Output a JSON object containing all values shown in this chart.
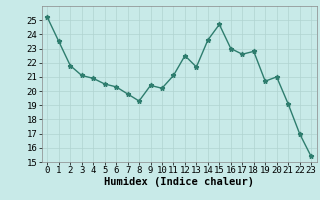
{
  "x": [
    0,
    1,
    2,
    3,
    4,
    5,
    6,
    7,
    8,
    9,
    10,
    11,
    12,
    13,
    14,
    15,
    16,
    17,
    18,
    19,
    20,
    21,
    22,
    23
  ],
  "y": [
    25.2,
    23.5,
    21.8,
    21.1,
    20.9,
    20.5,
    20.3,
    19.8,
    19.3,
    20.4,
    20.2,
    21.1,
    22.5,
    21.7,
    23.6,
    24.7,
    23.0,
    22.6,
    22.8,
    20.7,
    21.0,
    19.1,
    17.0,
    15.4
  ],
  "line_color": "#2e7d6e",
  "marker": "*",
  "bg_color": "#c8eae8",
  "grid_color": "#b0d4d0",
  "xlabel": "Humidex (Indice chaleur)",
  "ylim": [
    15,
    26
  ],
  "xlim": [
    -0.5,
    23.5
  ],
  "yticks": [
    15,
    16,
    17,
    18,
    19,
    20,
    21,
    22,
    23,
    24,
    25
  ],
  "xticks": [
    0,
    1,
    2,
    3,
    4,
    5,
    6,
    7,
    8,
    9,
    10,
    11,
    12,
    13,
    14,
    15,
    16,
    17,
    18,
    19,
    20,
    21,
    22,
    23
  ],
  "xlabel_fontsize": 7.5,
  "tick_fontsize": 6.5,
  "line_width": 1.0,
  "marker_size": 3.5
}
